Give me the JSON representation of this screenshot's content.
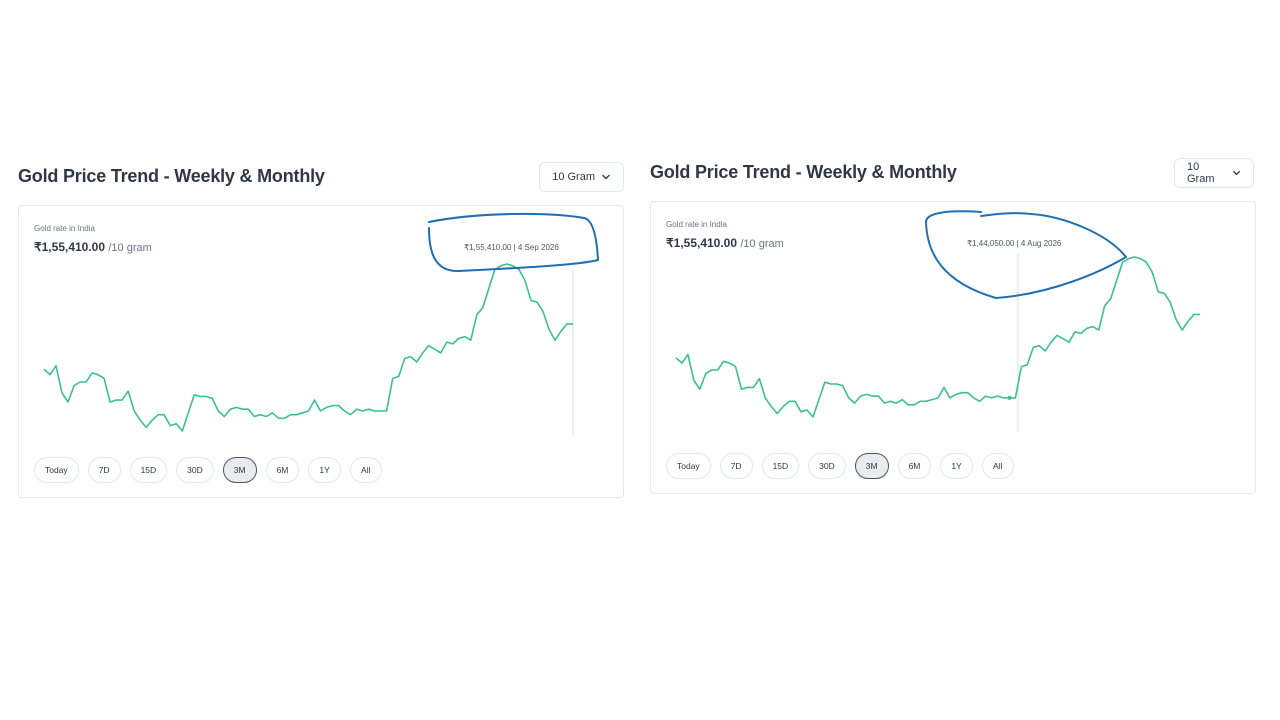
{
  "panels": [
    {
      "title": "Gold Price Trend - Weekly & Monthly",
      "unit_select": "10 Gram",
      "caption": "Gold rate in India",
      "price": "₹1,55,410.00",
      "price_unit": "/10 gram",
      "tooltip": "₹1,55,410.00 | 4 Sep 2026",
      "ranges": [
        "Today",
        "7D",
        "15D",
        "30D",
        "3M",
        "6M",
        "1Y",
        "All"
      ],
      "active_range": "3M",
      "colors": {
        "line": "#3dbf94",
        "annotation": "#1f6fb2"
      }
    },
    {
      "title": "Gold Price Trend - Weekly & Monthly",
      "unit_select": "10 Gram",
      "caption": "Gold rate in India",
      "price": "₹1,55,410.00",
      "price_unit": "/10 gram",
      "tooltip": "₹1,44,050.00 | 4 Aug 2026",
      "ranges": [
        "Today",
        "7D",
        "15D",
        "30D",
        "3M",
        "6M",
        "1Y",
        "All"
      ],
      "active_range": "3M",
      "colors": {
        "line": "#3dbf94",
        "annotation": "#1f6fb2"
      }
    }
  ],
  "chart_data": {
    "type": "line",
    "series": [
      {
        "values": [
          139600,
          139300,
          139800,
          138300,
          137800,
          138700,
          138900,
          138900,
          139400,
          139300,
          139100,
          137800,
          137900,
          137900,
          138400,
          137300,
          136800,
          136400,
          136800,
          137100,
          137100,
          136500,
          136600,
          136200,
          137200,
          138200,
          138100,
          138100,
          138000,
          137300,
          137000,
          137400,
          137500,
          137400,
          137400,
          137000,
          137100,
          137000,
          137200,
          136900,
          136900,
          137100,
          137100,
          137200,
          137300,
          137900,
          137300,
          137500,
          137600,
          137600,
          137300,
          137100,
          137400,
          137300,
          137400,
          137300,
          137300,
          137300,
          139100,
          139200,
          140200,
          140300,
          140000,
          140500,
          140900,
          140700,
          140500,
          141100,
          141000,
          141300,
          141400,
          141200,
          142600,
          143000,
          144050,
          145100,
          145300,
          145400,
          145300,
          145100,
          144500,
          143400,
          143300,
          142800,
          141800,
          141200,
          141700,
          142100,
          142100
        ]
      }
    ]
  }
}
